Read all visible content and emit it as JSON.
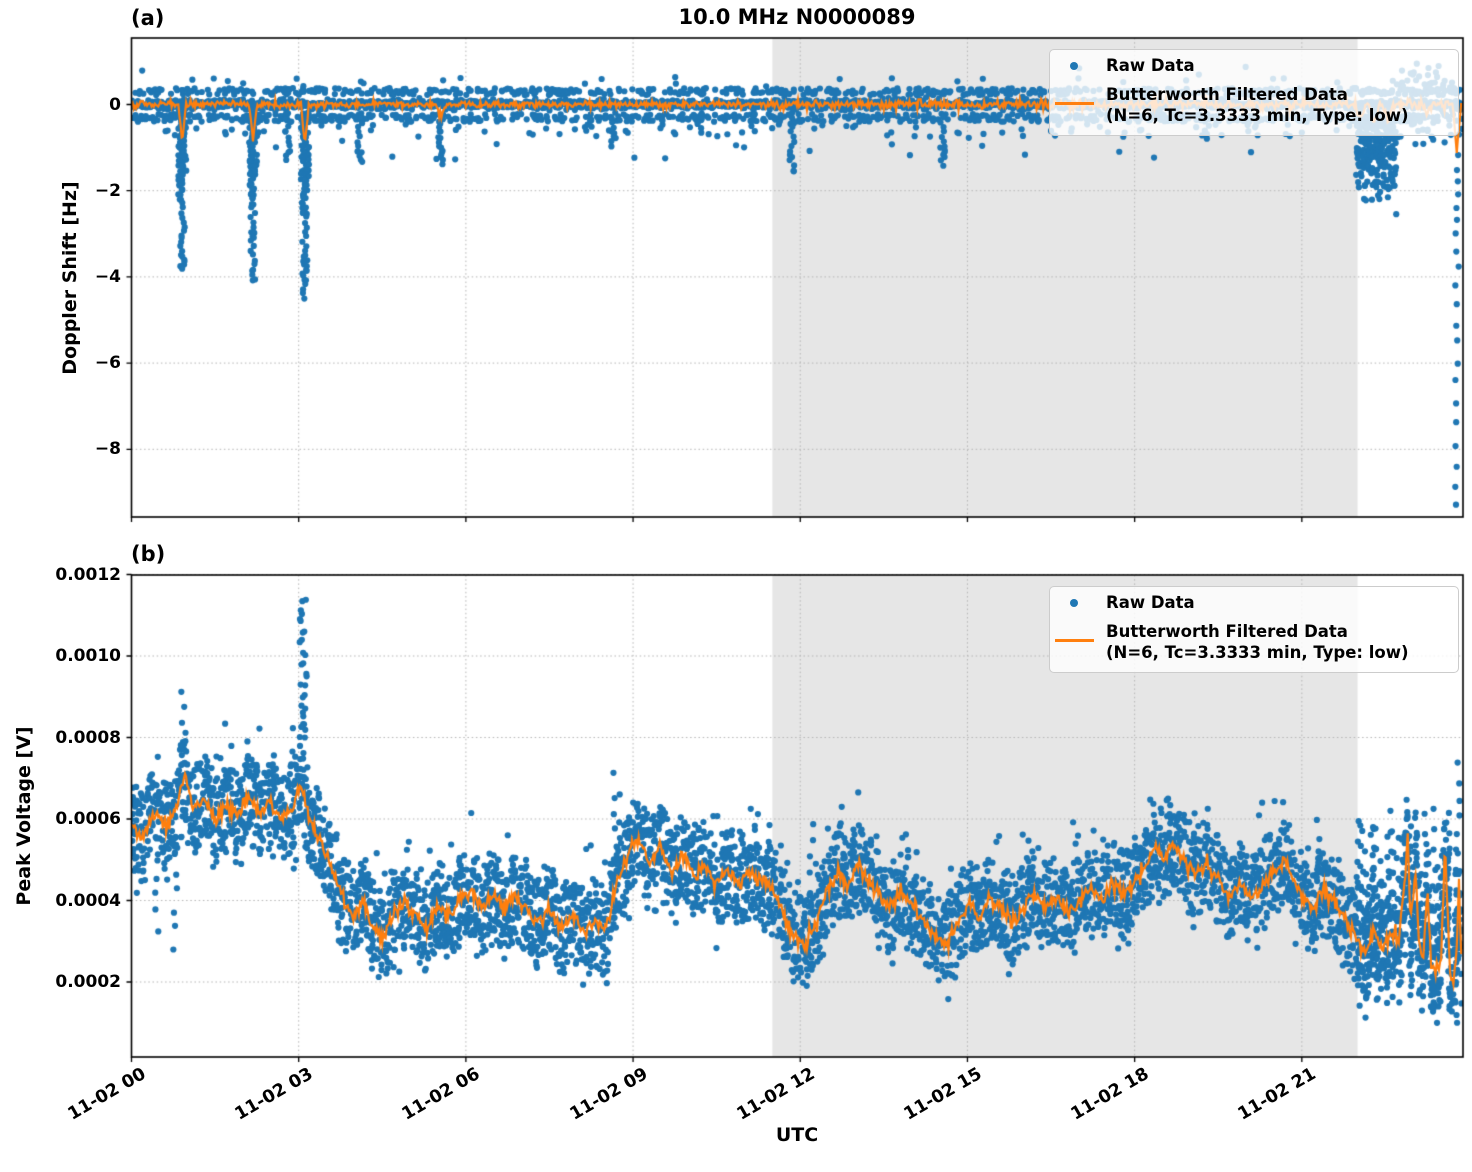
{
  "figure": {
    "title": "10.0 MHz N0000089",
    "panel_a_label": "(a)",
    "panel_b_label": "(b)",
    "xlabel": "UTC",
    "colors": {
      "raw_data": "#1f77b4",
      "filtered_data": "#ff7f0e",
      "shaded_region": "#e6e6e6",
      "grid": "#b5b5b5",
      "spine": "#000000"
    },
    "legend": {
      "raw_label": "Raw Data",
      "filtered_label_line1": "Butterworth Filtered Data",
      "filtered_label_line2": "(N=6, Tc=3.3333 min, Type: low)"
    }
  },
  "chart_data": [
    {
      "panel": "a",
      "type": "scatter",
      "title": "10.0 MHz N0000089",
      "ylabel": "Doppler Shift [Hz]",
      "ylim": [
        -9.6,
        1.55
      ],
      "yticks": [
        0,
        -2,
        -4,
        -6,
        -8
      ],
      "ytick_labels": [
        "0",
        "−2",
        "−4",
        "−6",
        "−8"
      ],
      "xlim_hours": [
        0,
        23.9
      ],
      "xticks_hours": [
        0,
        3,
        6,
        9,
        12,
        15,
        18,
        21
      ],
      "xtick_labels": [
        "11-02 00",
        "11-02 03",
        "11-02 06",
        "11-02 09",
        "11-02 12",
        "11-02 15",
        "11-02 18",
        "11-02 21"
      ],
      "grid": true,
      "legend_position": "upper right",
      "shaded_region_hours": [
        11.5,
        22.0
      ],
      "series": [
        {
          "name": "Raw Data",
          "type": "scatter",
          "color": "#1f77b4",
          "baseline_hz": 0,
          "band_halfwidth_hz": 0.25,
          "spike_events": [
            {
              "t": 0.91,
              "min": -3.85
            },
            {
              "t": 2.18,
              "min": -4.05
            },
            {
              "t": 2.8,
              "min": -1.4
            },
            {
              "t": 3.11,
              "min": -4.6
            },
            {
              "t": 4.1,
              "min": -1.35
            },
            {
              "t": 5.55,
              "min": -1.5
            },
            {
              "t": 8.65,
              "min": -1.0
            },
            {
              "t": 10.2,
              "min": -0.6
            },
            {
              "t": 11.85,
              "min": -1.55
            },
            {
              "t": 14.55,
              "min": -1.5
            }
          ],
          "negative_cluster": {
            "t_start": 21.98,
            "t_end": 22.7,
            "min": -2.7
          },
          "elevated_scatter": {
            "t_start": 22.72,
            "t_end": 23.72,
            "max": 1.05,
            "min": -0.95
          },
          "right_edge_column": {
            "t": 23.78,
            "values": [
              -1.2,
              -1.5,
              -1.8,
              -2.1,
              -2.4,
              -2.7,
              -3.0,
              -3.4,
              -3.8,
              -4.2,
              -4.6,
              -5.1,
              -5.5,
              -6.0,
              -6.4,
              -6.9,
              -7.4,
              -7.9,
              -8.4,
              -8.9,
              -9.25
            ]
          }
        },
        {
          "name": "Butterworth Filtered Data (N=6, Tc=3.3333 min, Type: low)",
          "type": "line",
          "color": "#ff7f0e",
          "baseline_hz": 0,
          "noise_hz": 0.04,
          "dips": [
            {
              "t": 0.91,
              "depth": -0.85
            },
            {
              "t": 2.18,
              "depth": -0.8
            },
            {
              "t": 3.11,
              "depth": -0.95
            },
            {
              "t": 5.55,
              "depth": -0.25
            },
            {
              "t": 22.05,
              "depth": -0.35
            },
            {
              "t": 22.3,
              "depth": -0.45
            },
            {
              "t": 22.55,
              "depth": -0.35
            },
            {
              "t": 23.25,
              "depth": -0.25
            },
            {
              "t": 23.78,
              "depth": -1.15
            }
          ]
        }
      ]
    },
    {
      "panel": "b",
      "type": "scatter",
      "ylabel": "Peak Voltage [V]",
      "xlabel": "UTC",
      "ylim": [
        0,
        0.0012
      ],
      "yticks": [
        0.0002,
        0.0004,
        0.0006,
        0.0008,
        0.001,
        0.0012
      ],
      "ytick_labels": [
        "0.0002",
        "0.0004",
        "0.0006",
        "0.0008",
        "0.0010",
        "0.0012"
      ],
      "xlim_hours": [
        0,
        23.9
      ],
      "xticks_hours": [
        0,
        3,
        6,
        9,
        12,
        15,
        18,
        21
      ],
      "xtick_labels": [
        "11-02 00",
        "11-02 03",
        "11-02 06",
        "11-02 09",
        "11-02 12",
        "11-02 15",
        "11-02 18",
        "11-02 21"
      ],
      "grid": true,
      "legend_position": "upper right",
      "shaded_region_hours": [
        11.5,
        22.0
      ],
      "series": [
        {
          "name": "Raw Data",
          "type": "scatter",
          "color": "#1f77b4",
          "band_halfwidth_v": 8e-05,
          "high_outlier_columns": [
            {
              "t": 0.92,
              "max": 0.00094
            },
            {
              "t": 3.08,
              "max": 0.00115,
              "dense": true
            },
            {
              "t": 8.68,
              "max": 0.00072
            },
            {
              "t": 12.2,
              "max": 0.00062
            },
            {
              "t": 12.75,
              "max": 0.0006
            },
            {
              "t": 13.1,
              "max": 0.00058
            },
            {
              "t": 16.1,
              "max": 0.00058
            },
            {
              "t": 17.45,
              "max": 0.00056
            },
            {
              "t": 18.6,
              "max": 0.00068
            },
            {
              "t": 19.05,
              "max": 0.00064
            },
            {
              "t": 21.3,
              "max": 0.00062
            },
            {
              "t": 23.8,
              "max": 0.00075
            }
          ],
          "low_outlier_columns": [
            {
              "t": 0.45,
              "min": 0.00029
            },
            {
              "t": 0.78,
              "min": 0.00025
            }
          ],
          "spiky_tail": {
            "t_start": 21.95,
            "t_end": 23.85,
            "max": 0.00066,
            "min": 0.0001
          }
        },
        {
          "name": "Butterworth Filtered Data (N=6, Tc=3.3333 min, Type: low)",
          "type": "line",
          "color": "#ff7f0e",
          "value_scale": 0.0001,
          "points_e4": [
            [
              0,
              5.9
            ],
            [
              0.2,
              5.5
            ],
            [
              0.4,
              6.2
            ],
            [
              0.6,
              5.8
            ],
            [
              0.8,
              6.2
            ],
            [
              0.95,
              7.1
            ],
            [
              1.1,
              6.2
            ],
            [
              1.3,
              6.5
            ],
            [
              1.5,
              6.0
            ],
            [
              1.7,
              6.3
            ],
            [
              1.9,
              6.1
            ],
            [
              2.1,
              6.5
            ],
            [
              2.3,
              6.2
            ],
            [
              2.5,
              6.4
            ],
            [
              2.7,
              6.0
            ],
            [
              2.9,
              6.2
            ],
            [
              3.05,
              6.9
            ],
            [
              3.2,
              6.0
            ],
            [
              3.4,
              5.5
            ],
            [
              3.6,
              4.7
            ],
            [
              3.8,
              4.0
            ],
            [
              4.0,
              3.6
            ],
            [
              4.15,
              4.1
            ],
            [
              4.3,
              3.4
            ],
            [
              4.5,
              3.1
            ],
            [
              4.7,
              3.7
            ],
            [
              4.9,
              4.0
            ],
            [
              5.1,
              3.6
            ],
            [
              5.3,
              3.3
            ],
            [
              5.5,
              3.9
            ],
            [
              5.7,
              3.6
            ],
            [
              5.9,
              4.0
            ],
            [
              6.1,
              4.2
            ],
            [
              6.3,
              3.8
            ],
            [
              6.5,
              4.1
            ],
            [
              6.7,
              3.8
            ],
            [
              6.9,
              4.1
            ],
            [
              7.1,
              3.7
            ],
            [
              7.3,
              3.4
            ],
            [
              7.5,
              3.8
            ],
            [
              7.7,
              3.3
            ],
            [
              7.9,
              3.6
            ],
            [
              8.1,
              3.2
            ],
            [
              8.3,
              3.5
            ],
            [
              8.5,
              3.3
            ],
            [
              8.7,
              4.4
            ],
            [
              8.9,
              5.1
            ],
            [
              9.1,
              5.5
            ],
            [
              9.3,
              4.9
            ],
            [
              9.5,
              5.3
            ],
            [
              9.7,
              4.7
            ],
            [
              9.9,
              5.1
            ],
            [
              10.1,
              4.6
            ],
            [
              10.3,
              4.8
            ],
            [
              10.5,
              4.4
            ],
            [
              10.7,
              4.7
            ],
            [
              10.9,
              4.4
            ],
            [
              11.1,
              4.7
            ],
            [
              11.3,
              4.5
            ],
            [
              11.5,
              4.3
            ],
            [
              11.7,
              3.7
            ],
            [
              11.9,
              3.1
            ],
            [
              12.1,
              2.9
            ],
            [
              12.3,
              3.5
            ],
            [
              12.5,
              4.3
            ],
            [
              12.7,
              4.7
            ],
            [
              12.85,
              4.3
            ],
            [
              13.0,
              4.9
            ],
            [
              13.2,
              4.5
            ],
            [
              13.4,
              4.2
            ],
            [
              13.6,
              3.8
            ],
            [
              13.8,
              4.2
            ],
            [
              14.0,
              3.9
            ],
            [
              14.2,
              3.5
            ],
            [
              14.4,
              3.2
            ],
            [
              14.6,
              2.9
            ],
            [
              14.8,
              3.4
            ],
            [
              15.0,
              3.9
            ],
            [
              15.2,
              3.6
            ],
            [
              15.4,
              4.1
            ],
            [
              15.6,
              3.8
            ],
            [
              15.8,
              3.5
            ],
            [
              16.0,
              3.8
            ],
            [
              16.2,
              4.2
            ],
            [
              16.4,
              3.8
            ],
            [
              16.6,
              4.1
            ],
            [
              16.8,
              3.7
            ],
            [
              17.0,
              4.0
            ],
            [
              17.2,
              4.3
            ],
            [
              17.4,
              4.0
            ],
            [
              17.6,
              4.4
            ],
            [
              17.8,
              4.1
            ],
            [
              18.0,
              4.5
            ],
            [
              18.2,
              4.9
            ],
            [
              18.4,
              5.3
            ],
            [
              18.55,
              5.0
            ],
            [
              18.7,
              5.4
            ],
            [
              18.9,
              5.0
            ],
            [
              19.1,
              4.7
            ],
            [
              19.3,
              4.9
            ],
            [
              19.5,
              4.5
            ],
            [
              19.7,
              4.1
            ],
            [
              19.9,
              4.4
            ],
            [
              20.1,
              4.0
            ],
            [
              20.3,
              4.4
            ],
            [
              20.5,
              4.7
            ],
            [
              20.7,
              5.1
            ],
            [
              20.85,
              4.6
            ],
            [
              21.0,
              4.1
            ],
            [
              21.2,
              3.8
            ],
            [
              21.4,
              4.3
            ],
            [
              21.6,
              3.9
            ],
            [
              21.8,
              3.5
            ],
            [
              22.0,
              3.0
            ],
            [
              22.15,
              2.6
            ],
            [
              22.3,
              3.3
            ],
            [
              22.45,
              2.8
            ],
            [
              22.6,
              3.2
            ],
            [
              22.75,
              3.0
            ],
            [
              22.9,
              5.5
            ],
            [
              22.95,
              3.4
            ],
            [
              23.05,
              4.8
            ],
            [
              23.1,
              3.0
            ],
            [
              23.18,
              2.6
            ],
            [
              23.25,
              4.4
            ],
            [
              23.32,
              2.4
            ],
            [
              23.4,
              2.2
            ],
            [
              23.5,
              2.6
            ],
            [
              23.57,
              5.4
            ],
            [
              23.65,
              2.4
            ],
            [
              23.72,
              1.9
            ],
            [
              23.78,
              2.8
            ],
            [
              23.82,
              4.6
            ],
            [
              23.87,
              2.3
            ]
          ]
        }
      ]
    }
  ]
}
